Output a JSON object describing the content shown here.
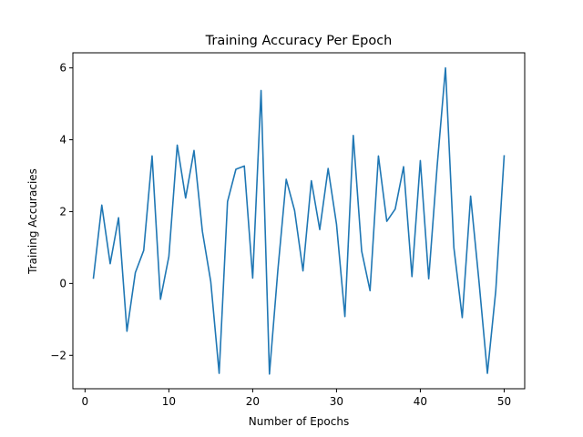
{
  "chart_data": {
    "type": "line",
    "title": "Training Accuracy Per Epoch",
    "xlabel": "Number of Epochs",
    "ylabel": "Training Accuracies",
    "xlim": [
      -1.45,
      52.45
    ],
    "ylim": [
      -2.93,
      6.42
    ],
    "xticks": [
      0,
      10,
      20,
      30,
      40,
      50
    ],
    "yticks": [
      -2,
      0,
      2,
      4,
      6
    ],
    "grid": false,
    "series": [
      {
        "name": "",
        "color": "#1f77b4",
        "x": [
          1,
          2,
          3,
          4,
          5,
          6,
          7,
          8,
          9,
          10,
          11,
          12,
          13,
          14,
          15,
          16,
          17,
          18,
          19,
          20,
          21,
          22,
          23,
          24,
          25,
          26,
          27,
          28,
          29,
          30,
          31,
          32,
          33,
          34,
          35,
          36,
          37,
          38,
          39,
          40,
          41,
          42,
          43,
          44,
          45,
          46,
          47,
          48,
          49,
          50
        ],
        "y": [
          0.15,
          2.18,
          0.55,
          1.83,
          -1.33,
          0.3,
          0.92,
          3.55,
          -0.44,
          0.75,
          3.85,
          2.38,
          3.7,
          1.45,
          0.05,
          -2.5,
          2.28,
          3.18,
          3.27,
          0.15,
          5.37,
          -2.52,
          0.36,
          2.9,
          2.03,
          0.35,
          2.86,
          1.5,
          3.2,
          1.65,
          -0.92,
          4.12,
          0.9,
          -0.2,
          3.55,
          1.73,
          2.07,
          3.25,
          0.19,
          3.42,
          0.13,
          3.25,
          6.0,
          1.0,
          -0.95,
          2.43,
          0.05,
          -2.5,
          -0.2,
          3.55
        ]
      }
    ]
  }
}
